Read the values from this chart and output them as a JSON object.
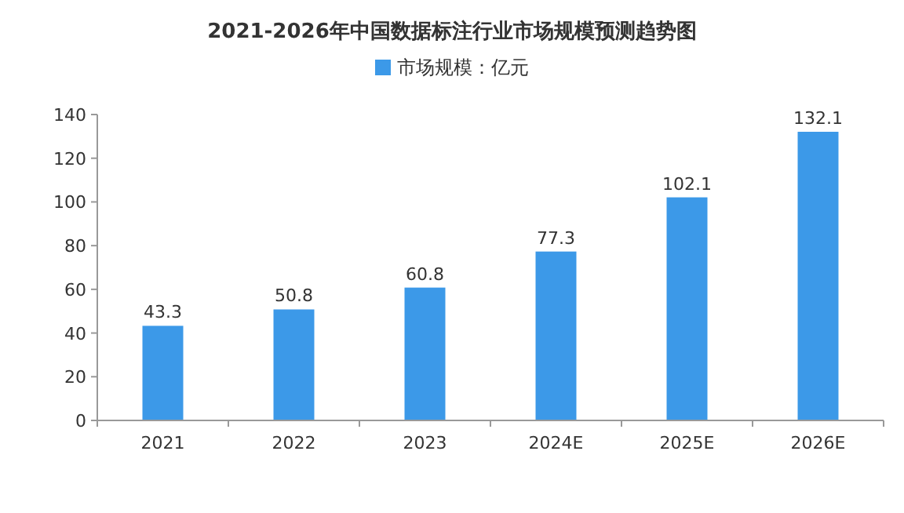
{
  "chart_data": {
    "type": "bar",
    "title": "2021-2026年中国数据标注行业市场规模预测趋势图",
    "categories": [
      "2021",
      "2022",
      "2023",
      "2024E",
      "2025E",
      "2026E"
    ],
    "series": [
      {
        "name": "市场规模：亿元",
        "color": "#3c99e8",
        "values": [
          43.3,
          50.8,
          60.8,
          77.3,
          102.1,
          132.1
        ]
      }
    ],
    "ylim": [
      0,
      140
    ],
    "yticks": [
      0,
      20,
      40,
      60,
      80,
      100,
      120,
      140
    ],
    "data_labels": true,
    "legend": "top"
  }
}
